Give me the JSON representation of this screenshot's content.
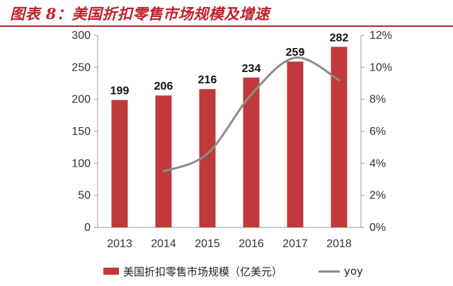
{
  "header": {
    "title": "图表 8：美国折扣零售市场规模及增速"
  },
  "chart_data": {
    "type": "bar",
    "categories": [
      "2013",
      "2014",
      "2015",
      "2016",
      "2017",
      "2018"
    ],
    "series": [
      {
        "name": "美国折扣零售市场规模（亿美元）",
        "type": "bar",
        "axis": "left",
        "values": [
          199,
          206,
          216,
          234,
          259,
          282
        ],
        "color": "#c0393b"
      },
      {
        "name": "yoy",
        "type": "line",
        "axis": "right",
        "values": [
          null,
          3.5,
          4.6,
          8.3,
          10.6,
          9.2
        ],
        "color": "#8c8c8c"
      }
    ],
    "data_labels": [
      "199",
      "206",
      "216",
      "234",
      "259",
      "282"
    ],
    "left_axis": {
      "ylim": [
        0,
        300
      ],
      "ticks": [
        "0",
        "50",
        "100",
        "150",
        "200",
        "250",
        "300"
      ]
    },
    "right_axis": {
      "ylim": [
        0,
        12
      ],
      "ticks": [
        "0%",
        "2%",
        "4%",
        "6%",
        "8%",
        "10%",
        "12%"
      ]
    },
    "grid": false,
    "legend_position": "bottom"
  },
  "legend": {
    "bar_label": "美国折扣零售市场规模（亿美元）",
    "line_label": "yoy"
  }
}
